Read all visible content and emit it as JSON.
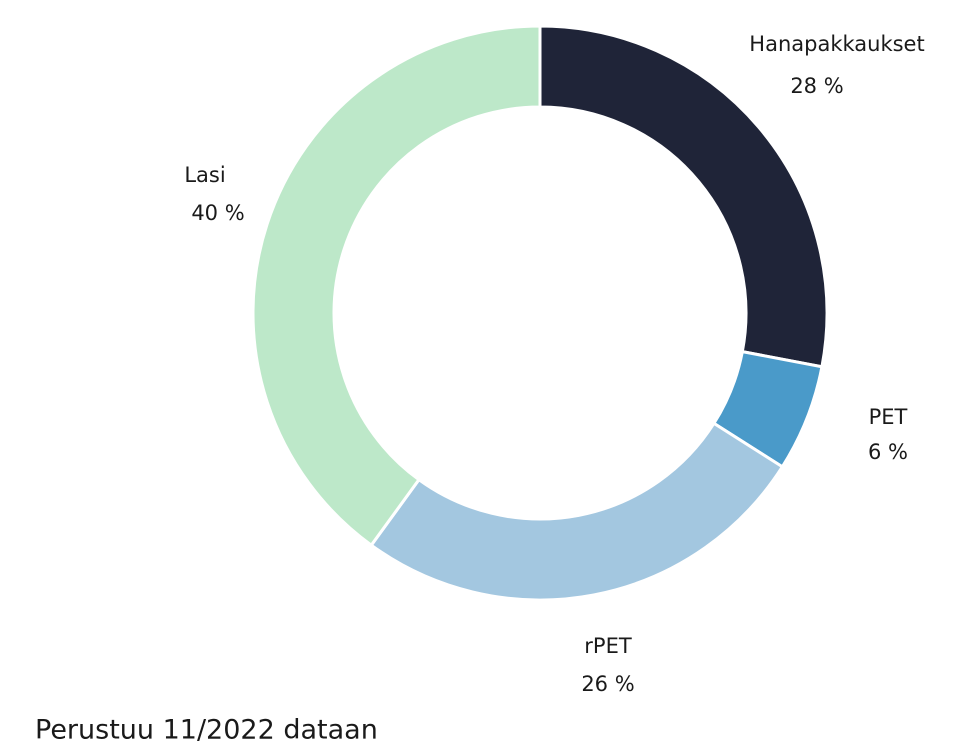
{
  "chart_data": {
    "type": "donut",
    "categories": [
      "Hanapakkaukset",
      "PET",
      "rPET",
      "Lasi"
    ],
    "values": [
      28,
      6,
      26,
      40
    ],
    "value_labels": [
      "28 %",
      "6 %",
      "26 %",
      "40 %"
    ],
    "colors": [
      "#1f2438",
      "#4a9ac9",
      "#a3c7e0",
      "#bde8c9"
    ],
    "note": "Perustuu 11/2022 dataan"
  }
}
